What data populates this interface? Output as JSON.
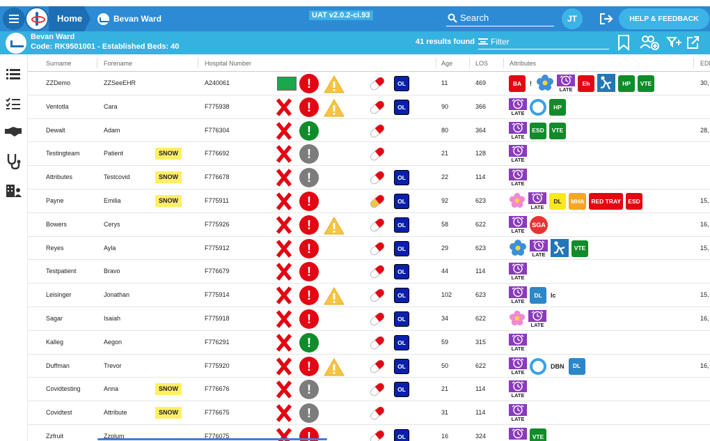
{
  "colors": {
    "primary": "#2d8ad4",
    "secondary": "#36b2e0",
    "red": "#e30613",
    "green": "#108c2a",
    "grey": "#7c7c7c",
    "amber": "#f5b731"
  },
  "header": {
    "home": "Home",
    "patient_crumb": "Bevan Ward",
    "version": "UAT v2.0.2-ci.93",
    "search_label": "Search",
    "user_initials": "JT",
    "help": "HELP & FEEDBACK"
  },
  "ward": {
    "name": "Bevan Ward",
    "code": "Code: RK9501001 - Established Beds: 40",
    "results": "41 results found",
    "filter_label": "Filter"
  },
  "columns": {
    "surname": "Surname",
    "forename": "Forename",
    "hospital": "Hospital Number",
    "age": "Age",
    "los": "LOS",
    "attributes": "Attributes",
    "edd": "EDD"
  },
  "rows": [
    {
      "surname": "ZZDemo",
      "forename": "ZZSeeEHR",
      "snow": "",
      "hosp": "A240061",
      "status": "green",
      "alert": "red",
      "warn": true,
      "pill": "red",
      "ol": "OL",
      "age": "11",
      "los": "469",
      "edd": "30,",
      "attrs": [
        {
          "t": "badge",
          "label": "BA",
          "c": "#e30613"
        },
        {
          "t": "plain",
          "label": "!"
        },
        {
          "t": "flower-blue"
        },
        {
          "t": "late"
        },
        {
          "t": "badge",
          "label": "Eh",
          "c": "#e30613"
        },
        {
          "t": "fall"
        },
        {
          "t": "badge",
          "label": "HP",
          "c": "#108c2a"
        },
        {
          "t": "badge",
          "label": "VTE",
          "c": "#108c2a"
        }
      ]
    },
    {
      "surname": "Ventotla",
      "forename": "Cara",
      "snow": "",
      "hosp": "F775938",
      "status": "x",
      "alert": "red",
      "warn": true,
      "pill": "red",
      "ol": "OL",
      "age": "90",
      "los": "366",
      "edd": "",
      "attrs": [
        {
          "t": "late"
        },
        {
          "t": "ring"
        },
        {
          "t": "badge",
          "label": "HP",
          "c": "#108c2a"
        }
      ]
    },
    {
      "surname": "Dewalt",
      "forename": "Adam",
      "snow": "",
      "hosp": "F776304",
      "status": "x",
      "alert": "green",
      "warn": false,
      "pill": "red",
      "ol": "",
      "age": "80",
      "los": "364",
      "edd": "28,",
      "attrs": [
        {
          "t": "late"
        },
        {
          "t": "badge",
          "label": "ESD",
          "c": "#108c2a"
        },
        {
          "t": "badge",
          "label": "VTE",
          "c": "#108c2a"
        }
      ]
    },
    {
      "surname": "Testingteam",
      "forename": "Patient",
      "snow": "SNOW",
      "hosp": "F776692",
      "status": "x",
      "alert": "grey",
      "warn": false,
      "pill": "red",
      "ol": "",
      "age": "21",
      "los": "128",
      "edd": "",
      "attrs": [
        {
          "t": "late"
        }
      ]
    },
    {
      "surname": "Attributes",
      "forename": "Testcovid",
      "snow": "SNOW",
      "hosp": "F776678",
      "status": "x",
      "alert": "grey",
      "warn": false,
      "pill": "red",
      "ol": "OL",
      "age": "22",
      "los": "114",
      "edd": "",
      "attrs": [
        {
          "t": "late"
        }
      ]
    },
    {
      "surname": "Payne",
      "forename": "Emilia",
      "snow": "SNOW",
      "hosp": "F775911",
      "status": "x",
      "alert": "red",
      "warn": false,
      "pill": "amber",
      "ol": "OL",
      "age": "92",
      "los": "623",
      "edd": "15,",
      "attrs": [
        {
          "t": "flower-pink"
        },
        {
          "t": "late"
        },
        {
          "t": "badge",
          "label": "DL",
          "c": "#f7e81b",
          "fg": "#222"
        },
        {
          "t": "badge",
          "label": "MHA",
          "c": "#f5a623"
        },
        {
          "t": "badge",
          "label": "RED TRAY",
          "c": "#e30613"
        },
        {
          "t": "badge",
          "label": "ESD",
          "c": "#e30613"
        }
      ]
    },
    {
      "surname": "Bowers",
      "forename": "Cerys",
      "snow": "",
      "hosp": "F775926",
      "status": "x",
      "alert": "red",
      "warn": true,
      "pill": "red",
      "ol": "OL",
      "age": "58",
      "los": "622",
      "edd": "16,",
      "attrs": [
        {
          "t": "late"
        },
        {
          "t": "sga",
          "label": "SGA"
        }
      ]
    },
    {
      "surname": "Reyes",
      "forename": "Ayla",
      "snow": "",
      "hosp": "F775912",
      "status": "x",
      "alert": "red",
      "warn": false,
      "pill": "red",
      "ol": "OL",
      "age": "29",
      "los": "623",
      "edd": "15,",
      "attrs": [
        {
          "t": "flower-blue"
        },
        {
          "t": "late"
        },
        {
          "t": "fall"
        },
        {
          "t": "badge",
          "label": "VTE",
          "c": "#108c2a"
        }
      ]
    },
    {
      "surname": "Testpatient",
      "forename": "Bravo",
      "snow": "",
      "hosp": "F776679",
      "status": "x",
      "alert": "red",
      "warn": false,
      "pill": "red",
      "ol": "OL",
      "age": "44",
      "los": "114",
      "edd": "",
      "attrs": [
        {
          "t": "late"
        }
      ]
    },
    {
      "surname": "Leisinger",
      "forename": "Jonathan",
      "snow": "",
      "hosp": "F775914",
      "status": "x",
      "alert": "red",
      "warn": true,
      "pill": "red",
      "ol": "OL",
      "age": "102",
      "los": "623",
      "edd": "15,",
      "attrs": [
        {
          "t": "late"
        },
        {
          "t": "badge",
          "label": "DL",
          "c": "#2c87c8"
        },
        {
          "t": "plain",
          "label": "Ic"
        }
      ]
    },
    {
      "surname": "Sagar",
      "forename": "Isaiah",
      "snow": "",
      "hosp": "F775918",
      "status": "x",
      "alert": "red",
      "warn": false,
      "pill": "red",
      "ol": "OL",
      "age": "34",
      "los": "622",
      "edd": "16,",
      "attrs": [
        {
          "t": "flower-pink"
        },
        {
          "t": "late"
        }
      ]
    },
    {
      "surname": "Kalleg",
      "forename": "Aegon",
      "snow": "",
      "hosp": "F776291",
      "status": "x",
      "alert": "green",
      "warn": false,
      "pill": "red",
      "ol": "OL",
      "age": "59",
      "los": "315",
      "edd": "",
      "attrs": [
        {
          "t": "late"
        }
      ]
    },
    {
      "surname": "Duffman",
      "forename": "Trevor",
      "snow": "",
      "hosp": "F775920",
      "status": "x",
      "alert": "red",
      "warn": true,
      "pill": "red",
      "ol": "OL",
      "age": "50",
      "los": "622",
      "edd": "16,",
      "attrs": [
        {
          "t": "late"
        },
        {
          "t": "ring"
        },
        {
          "t": "plain",
          "label": "DBN"
        },
        {
          "t": "badge",
          "label": "DL",
          "c": "#2c87c8"
        }
      ]
    },
    {
      "surname": "Covidtesting",
      "forename": "Anna",
      "snow": "SNOW",
      "hosp": "F776676",
      "status": "x",
      "alert": "grey",
      "warn": false,
      "pill": "red",
      "ol": "OL",
      "age": "21",
      "los": "114",
      "edd": "",
      "attrs": [
        {
          "t": "late"
        }
      ]
    },
    {
      "surname": "Covidtest",
      "forename": "Attribute",
      "snow": "SNOW",
      "hosp": "F776675",
      "status": "x",
      "alert": "grey",
      "warn": false,
      "pill": "red",
      "ol": "",
      "age": "31",
      "los": "114",
      "edd": "",
      "attrs": [
        {
          "t": "late"
        }
      ]
    },
    {
      "surname": "Zzfruit",
      "forename": "Zzplum",
      "snow": "",
      "hosp": "F776075",
      "status": "x",
      "alert": "red",
      "warn": false,
      "pill": "red",
      "ol": "OL",
      "age": "16",
      "los": "324",
      "edd": "",
      "attrs": [
        {
          "t": "late"
        },
        {
          "t": "badge",
          "label": "VTE",
          "c": "#108c2a"
        }
      ]
    }
  ],
  "late_label": "LATE"
}
